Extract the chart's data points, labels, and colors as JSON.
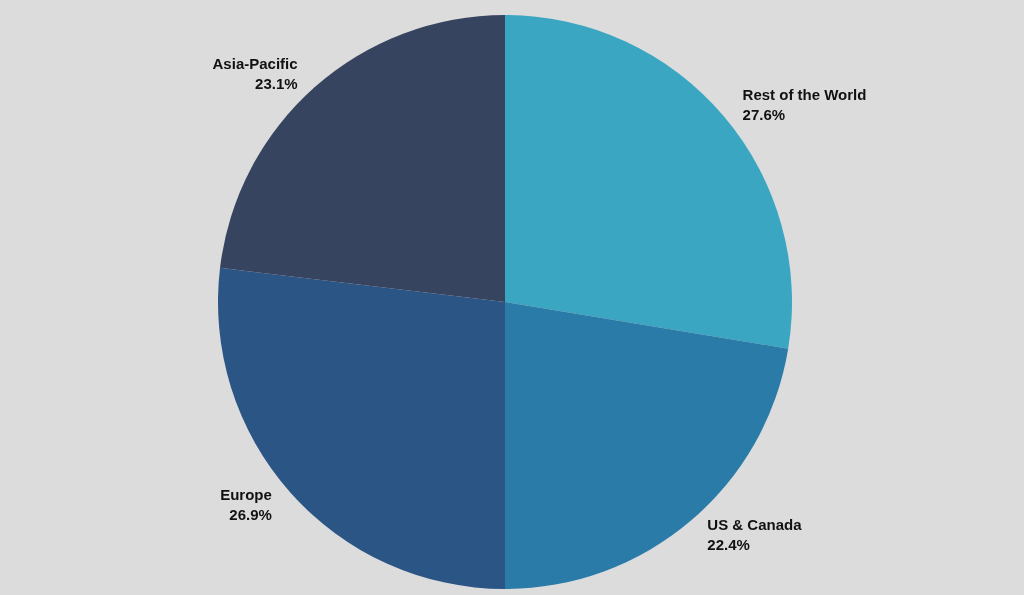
{
  "chart_data": {
    "type": "pie",
    "categories": [
      "Rest of the World",
      "US & Canada",
      "Europe",
      "Asia-Pacific"
    ],
    "values": [
      27.6,
      22.4,
      26.9,
      23.1
    ],
    "value_labels": [
      "27.6%",
      "22.4%",
      "26.9%",
      "23.1%"
    ],
    "colors": [
      "#3aa6c2",
      "#2a7ba8",
      "#2a5585",
      "#37445f"
    ],
    "legend": false
  }
}
